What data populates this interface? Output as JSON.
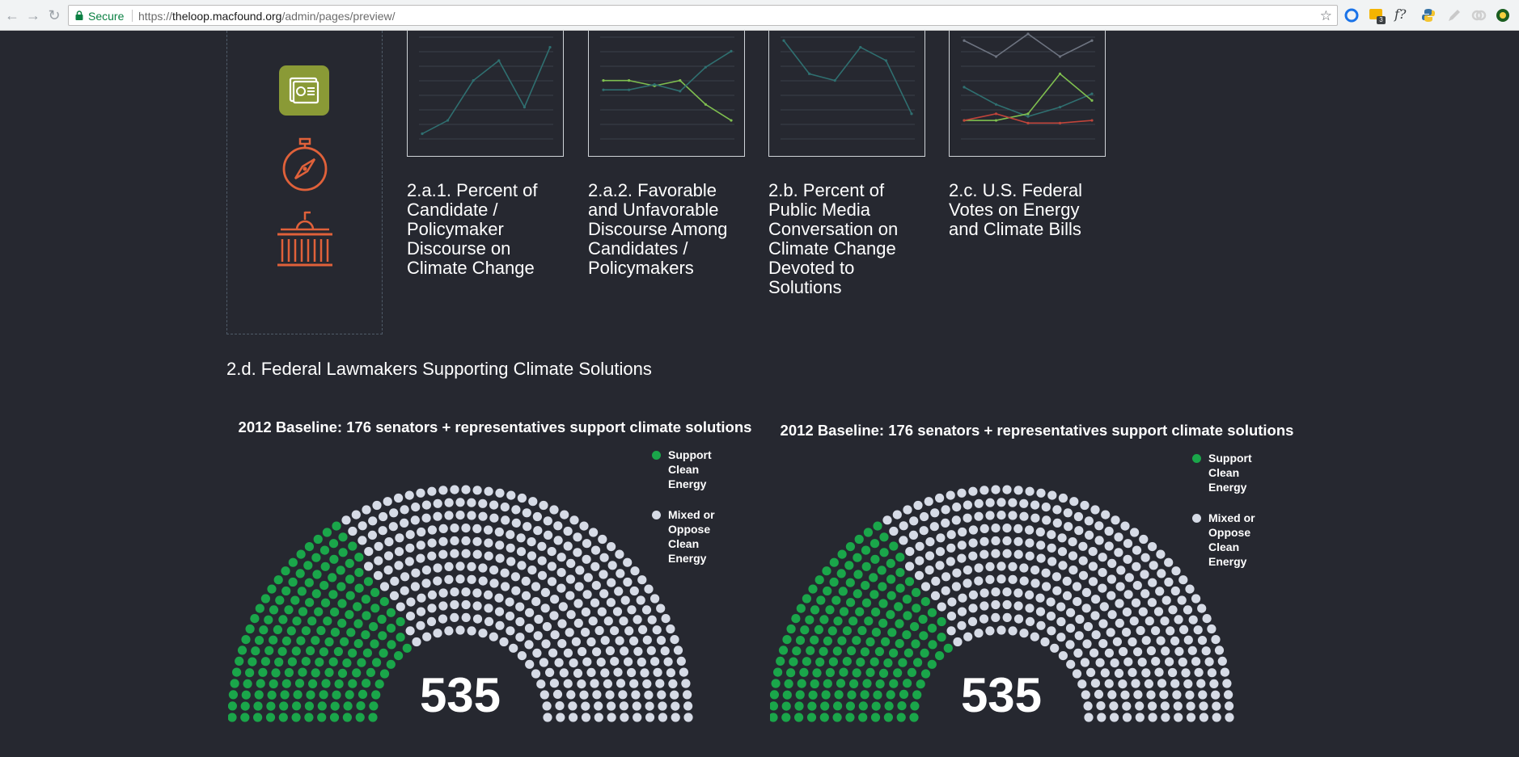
{
  "browser": {
    "secure_label": "Secure",
    "url_scheme": "https://",
    "url_host": "theloop.macfound.org",
    "url_path": "/admin/pages/preview/",
    "extension_badge": "3",
    "extension_fx_label": "f?"
  },
  "panel_icons": [
    "dashboard-icon",
    "compass-icon",
    "capitol-icon"
  ],
  "indicators": [
    {
      "title": "2.a.1. Percent of Candidate / Policymaker Discourse on Climate Change"
    },
    {
      "title": "2.a.2. Favorable and Unfavorable Discourse Among Candidates / Policymakers"
    },
    {
      "title": "2.b. Percent of Public Media Conversation on Climate Change Devoted to Solutions"
    },
    {
      "title": "2.c. U.S. Federal Votes on Energy and Climate Bills"
    }
  ],
  "section_title": "2.d. Federal Lawmakers Supporting Climate Solutions",
  "colors": {
    "background": "#262830",
    "support": "#1aa64a",
    "mixed": "#d6dbe6",
    "thumb_teal": "#2f6f70",
    "thumb_green": "#7fbf4f",
    "thumb_red": "#c0443a",
    "thumb_gray": "#6d7380",
    "icon_orange": "#e0613a",
    "icon_olive": "#8a9a36"
  },
  "chart_data": [
    {
      "type": "line",
      "series": [
        {
          "values": [
            1,
            2,
            5,
            6.5,
            3,
            7.5
          ]
        }
      ]
    },
    {
      "type": "line",
      "series": [
        {
          "values": [
            5,
            5,
            4.6,
            5,
            3.2,
            2
          ]
        },
        {
          "values": [
            4.3,
            4.3,
            4.7,
            4.2,
            6,
            7.2
          ]
        }
      ]
    },
    {
      "type": "line",
      "series": [
        {
          "values": [
            8,
            5.5,
            5,
            7.5,
            6.5,
            2.5
          ]
        }
      ]
    },
    {
      "type": "line",
      "series": [
        {
          "values": [
            8,
            6.8,
            8.5,
            6.8,
            8
          ]
        },
        {
          "values": [
            4.5,
            3.2,
            2.3,
            3,
            4
          ]
        },
        {
          "values": [
            2,
            2,
            2.5,
            5.5,
            3.5
          ]
        },
        {
          "values": [
            2,
            2.5,
            1.8,
            1.8,
            2
          ]
        }
      ]
    },
    {
      "type": "parliament",
      "title": "2012 Baseline: 176 senators + representatives support climate solutions",
      "total": 535,
      "series": [
        {
          "name": "Support Clean Energy",
          "value": 176
        },
        {
          "name": "Mixed or Oppose Clean Energy",
          "value": 359
        }
      ]
    },
    {
      "type": "parliament",
      "title": "2012 Baseline: 176 senators + representatives support climate solutions",
      "total": 535,
      "series": [
        {
          "name": "Support Clean Energy",
          "value": 176
        },
        {
          "name": "Mixed or Oppose Clean Energy",
          "value": 359
        }
      ]
    }
  ]
}
